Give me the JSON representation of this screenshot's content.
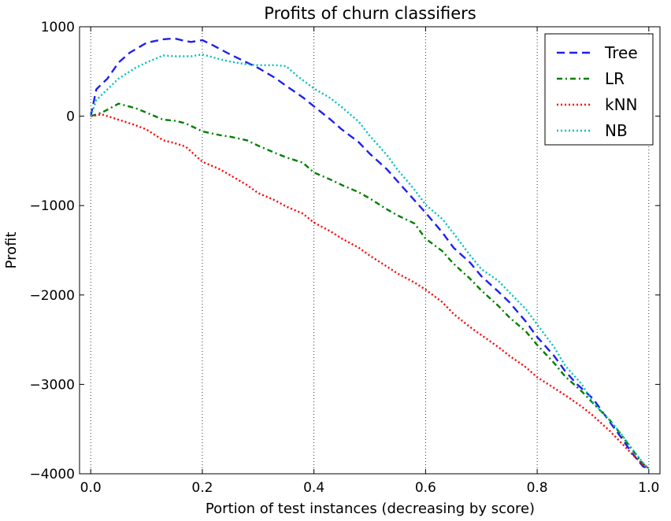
{
  "chart_data": {
    "type": "line",
    "title": "Profits of churn classifiers",
    "xlabel": "Portion of test instances (decreasing by score)",
    "ylabel": "Profit",
    "xlim": [
      -0.02,
      1.02
    ],
    "ylim": [
      -4000,
      1000
    ],
    "xticks": [
      0.0,
      0.2,
      0.4,
      0.6,
      0.8,
      1.0
    ],
    "xtick_labels": [
      "0.0",
      "0.2",
      "0.4",
      "0.6",
      "0.8",
      "1.0"
    ],
    "yticks": [
      1000,
      0,
      -1000,
      -2000,
      -3000,
      -4000
    ],
    "ytick_labels": [
      "1000",
      "0",
      "−1000",
      "−2000",
      "−3000",
      "−4000"
    ],
    "grid": "vertical-dotted",
    "legend_position": "top-right",
    "series": [
      {
        "name": "Tree",
        "color": "#1f1ff0",
        "style": "dashed",
        "x": [
          0.0,
          0.01,
          0.03,
          0.05,
          0.07,
          0.1,
          0.13,
          0.15,
          0.17,
          0.18,
          0.2,
          0.22,
          0.25,
          0.28,
          0.3,
          0.33,
          0.35,
          0.38,
          0.4,
          0.43,
          0.45,
          0.48,
          0.5,
          0.53,
          0.55,
          0.58,
          0.6,
          0.63,
          0.65,
          0.68,
          0.7,
          0.73,
          0.75,
          0.78,
          0.8,
          0.83,
          0.85,
          0.87,
          0.9,
          0.93,
          0.95,
          0.97,
          0.99,
          1.0
        ],
        "y": [
          0,
          300,
          420,
          600,
          710,
          820,
          860,
          870,
          840,
          830,
          850,
          790,
          690,
          600,
          540,
          430,
          340,
          210,
          110,
          -40,
          -150,
          -290,
          -420,
          -590,
          -730,
          -940,
          -1080,
          -1300,
          -1470,
          -1640,
          -1790,
          -1960,
          -2080,
          -2300,
          -2470,
          -2680,
          -2850,
          -2990,
          -3160,
          -3420,
          -3590,
          -3770,
          -3920,
          -3940
        ]
      },
      {
        "name": "LR",
        "color": "#007f00",
        "style": "dashdot",
        "x": [
          0.0,
          0.02,
          0.05,
          0.08,
          0.1,
          0.13,
          0.15,
          0.17,
          0.2,
          0.23,
          0.25,
          0.28,
          0.3,
          0.33,
          0.35,
          0.38,
          0.4,
          0.43,
          0.45,
          0.48,
          0.5,
          0.53,
          0.55,
          0.58,
          0.6,
          0.63,
          0.65,
          0.68,
          0.7,
          0.73,
          0.75,
          0.78,
          0.8,
          0.83,
          0.85,
          0.88,
          0.9,
          0.93,
          0.95,
          0.97,
          0.99,
          1.0
        ],
        "y": [
          0,
          40,
          140,
          90,
          40,
          -40,
          -50,
          -80,
          -170,
          -210,
          -230,
          -270,
          -330,
          -410,
          -460,
          -520,
          -630,
          -710,
          -770,
          -850,
          -920,
          -1040,
          -1110,
          -1200,
          -1370,
          -1510,
          -1650,
          -1820,
          -1950,
          -2120,
          -2250,
          -2410,
          -2560,
          -2760,
          -2910,
          -3080,
          -3210,
          -3400,
          -3560,
          -3730,
          -3890,
          -3940
        ]
      },
      {
        "name": "kNN",
        "color": "#ff0000",
        "style": "dotted",
        "x": [
          0.0,
          0.02,
          0.05,
          0.08,
          0.1,
          0.13,
          0.15,
          0.17,
          0.2,
          0.23,
          0.25,
          0.28,
          0.3,
          0.33,
          0.35,
          0.38,
          0.4,
          0.43,
          0.45,
          0.48,
          0.5,
          0.53,
          0.55,
          0.58,
          0.6,
          0.63,
          0.65,
          0.68,
          0.7,
          0.73,
          0.75,
          0.78,
          0.8,
          0.83,
          0.85,
          0.88,
          0.9,
          0.93,
          0.95,
          0.97,
          0.99,
          1.0
        ],
        "y": [
          0,
          20,
          -40,
          -100,
          -150,
          -270,
          -300,
          -340,
          -510,
          -590,
          -660,
          -770,
          -860,
          -940,
          -1010,
          -1090,
          -1190,
          -1290,
          -1370,
          -1470,
          -1560,
          -1680,
          -1760,
          -1860,
          -1940,
          -2080,
          -2210,
          -2360,
          -2450,
          -2580,
          -2680,
          -2810,
          -2920,
          -3040,
          -3120,
          -3250,
          -3350,
          -3520,
          -3650,
          -3780,
          -3900,
          -3940
        ]
      },
      {
        "name": "NB",
        "color": "#00bfbf",
        "style": "dotted",
        "x": [
          0.0,
          0.01,
          0.03,
          0.05,
          0.08,
          0.1,
          0.13,
          0.15,
          0.18,
          0.2,
          0.23,
          0.25,
          0.28,
          0.3,
          0.33,
          0.35,
          0.37,
          0.4,
          0.43,
          0.45,
          0.48,
          0.5,
          0.53,
          0.55,
          0.58,
          0.6,
          0.63,
          0.65,
          0.68,
          0.7,
          0.73,
          0.75,
          0.78,
          0.8,
          0.83,
          0.85,
          0.88,
          0.9,
          0.93,
          0.95,
          0.97,
          0.99,
          1.0
        ],
        "y": [
          0,
          180,
          300,
          420,
          540,
          600,
          680,
          670,
          670,
          690,
          640,
          610,
          580,
          570,
          570,
          560,
          450,
          310,
          200,
          100,
          -60,
          -220,
          -430,
          -600,
          -820,
          -990,
          -1150,
          -1310,
          -1560,
          -1710,
          -1840,
          -1970,
          -2160,
          -2330,
          -2580,
          -2790,
          -3000,
          -3200,
          -3400,
          -3550,
          -3720,
          -3880,
          -3940
        ]
      }
    ]
  }
}
